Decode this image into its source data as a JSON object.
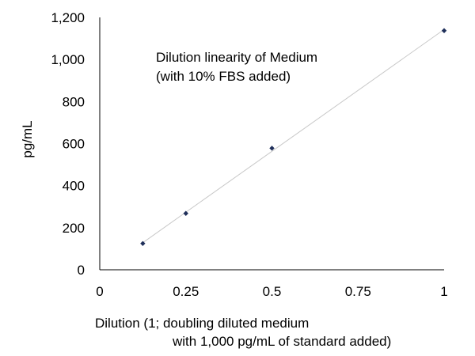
{
  "chart_data": {
    "type": "scatter",
    "title": "",
    "annotation": [
      "Dilution linearity of Medium",
      "(with 10% FBS added)"
    ],
    "xlabel": [
      "Dilution (1; doubling diluted medium",
      "with 1,000 pg/mL of standard added)"
    ],
    "ylabel": "pg/mL",
    "xlim": [
      0,
      1
    ],
    "ylim": [
      0,
      1200
    ],
    "x_ticks": [
      0,
      0.25,
      0.5,
      0.75,
      1
    ],
    "x_tick_labels": [
      "0",
      "0.25",
      "0.5",
      "0.75",
      "1"
    ],
    "y_ticks": [
      0,
      200,
      400,
      600,
      800,
      1000,
      1200
    ],
    "y_tick_labels": [
      "0",
      "200",
      "400",
      "600",
      "800",
      "1,000",
      "1,200"
    ],
    "grid": false,
    "legend": "none",
    "series": [
      {
        "x": [
          0.125,
          0.25,
          0.5,
          1
        ],
        "y": [
          125,
          268,
          578,
          1137
        ],
        "color": "#1f2f5a",
        "marker": "diamond",
        "trendline": "linear"
      }
    ],
    "trendline_color": "#c8c8c8"
  }
}
